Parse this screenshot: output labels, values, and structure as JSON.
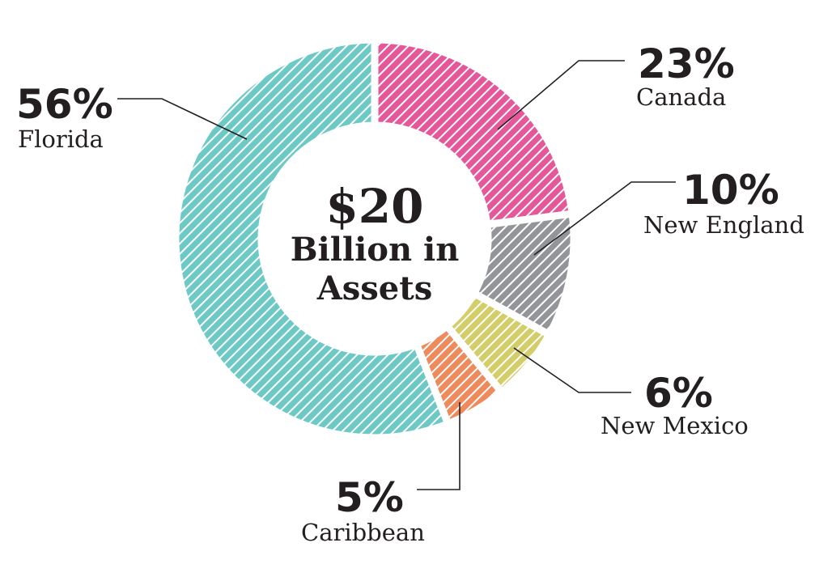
{
  "chart_data": {
    "type": "pie",
    "donut": true,
    "center_text": [
      "$20",
      "Billion in",
      "Assets"
    ],
    "slices": [
      {
        "name": "Canada",
        "value": 23,
        "label": "23%",
        "color": "#e6579a"
      },
      {
        "name": "New England",
        "value": 10,
        "label": "10%",
        "color": "#939598"
      },
      {
        "name": "New Mexico",
        "value": 6,
        "label": "6%",
        "color": "#d3cd6a"
      },
      {
        "name": "Caribbean",
        "value": 5,
        "label": "5%",
        "color": "#ee8a5c"
      },
      {
        "name": "Florida",
        "value": 56,
        "label": "56%",
        "color": "#6cc9c5"
      }
    ],
    "fill_pattern": "diagonal-hatch",
    "legend": "leader-line labels"
  }
}
